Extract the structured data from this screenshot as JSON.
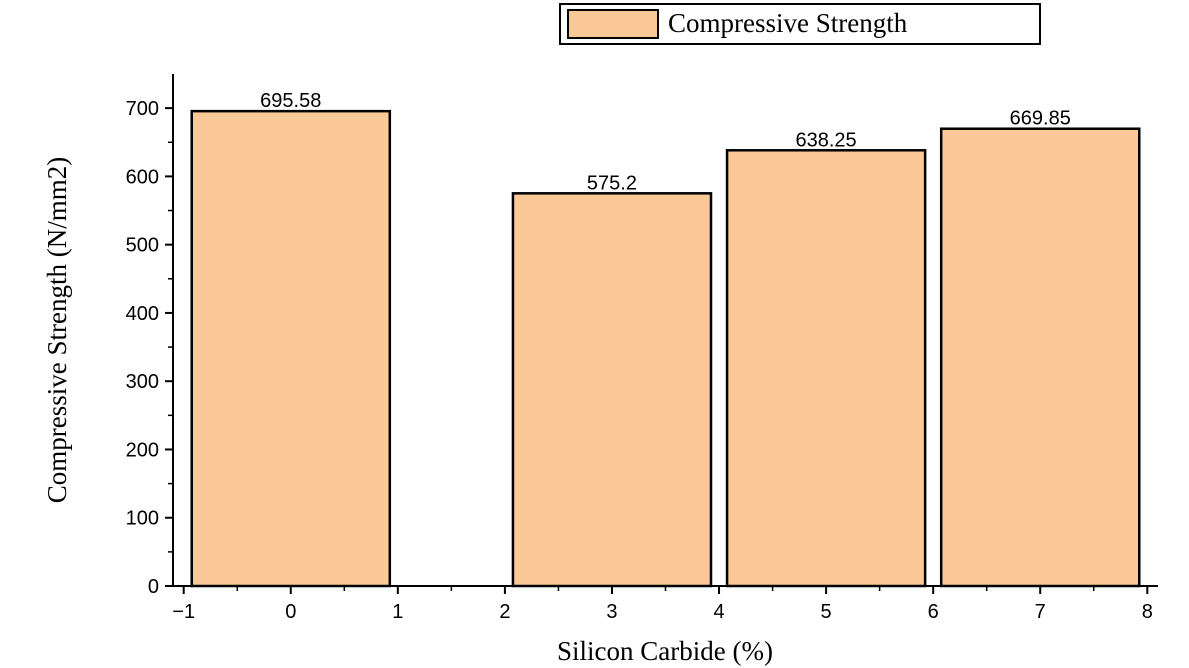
{
  "chart_data": {
    "type": "bar",
    "x": [
      0,
      3,
      5,
      7
    ],
    "bar_width": 1.85,
    "values": [
      695.58,
      575.2,
      638.25,
      669.85
    ],
    "data_labels": [
      "695.58",
      "575.2",
      "638.25",
      "669.85"
    ],
    "series": [
      {
        "name": "Compressive Strength",
        "values": [
          695.58,
          575.2,
          638.25,
          669.85
        ],
        "color": "#fbc898"
      }
    ],
    "xlabel": "Silicon Carbide (%)",
    "ylabel": "Compressive Strength (N/mm2)",
    "xlim": [
      -1.1,
      8.1
    ],
    "ylim": [
      0,
      750
    ],
    "x_ticks": [
      -1,
      0,
      1,
      2,
      3,
      4,
      5,
      6,
      7,
      8
    ],
    "x_tick_labels": [
      "−1",
      "0",
      "1",
      "2",
      "3",
      "4",
      "5",
      "6",
      "7",
      "8"
    ],
    "y_ticks": [
      0,
      100,
      200,
      300,
      400,
      500,
      600,
      700
    ],
    "y_tick_labels": [
      "0",
      "100",
      "200",
      "300",
      "400",
      "500",
      "600",
      "700"
    ],
    "grid": false,
    "legend_position": "top-right",
    "bar_color": "#fbc898",
    "edge_color": "#000000"
  }
}
